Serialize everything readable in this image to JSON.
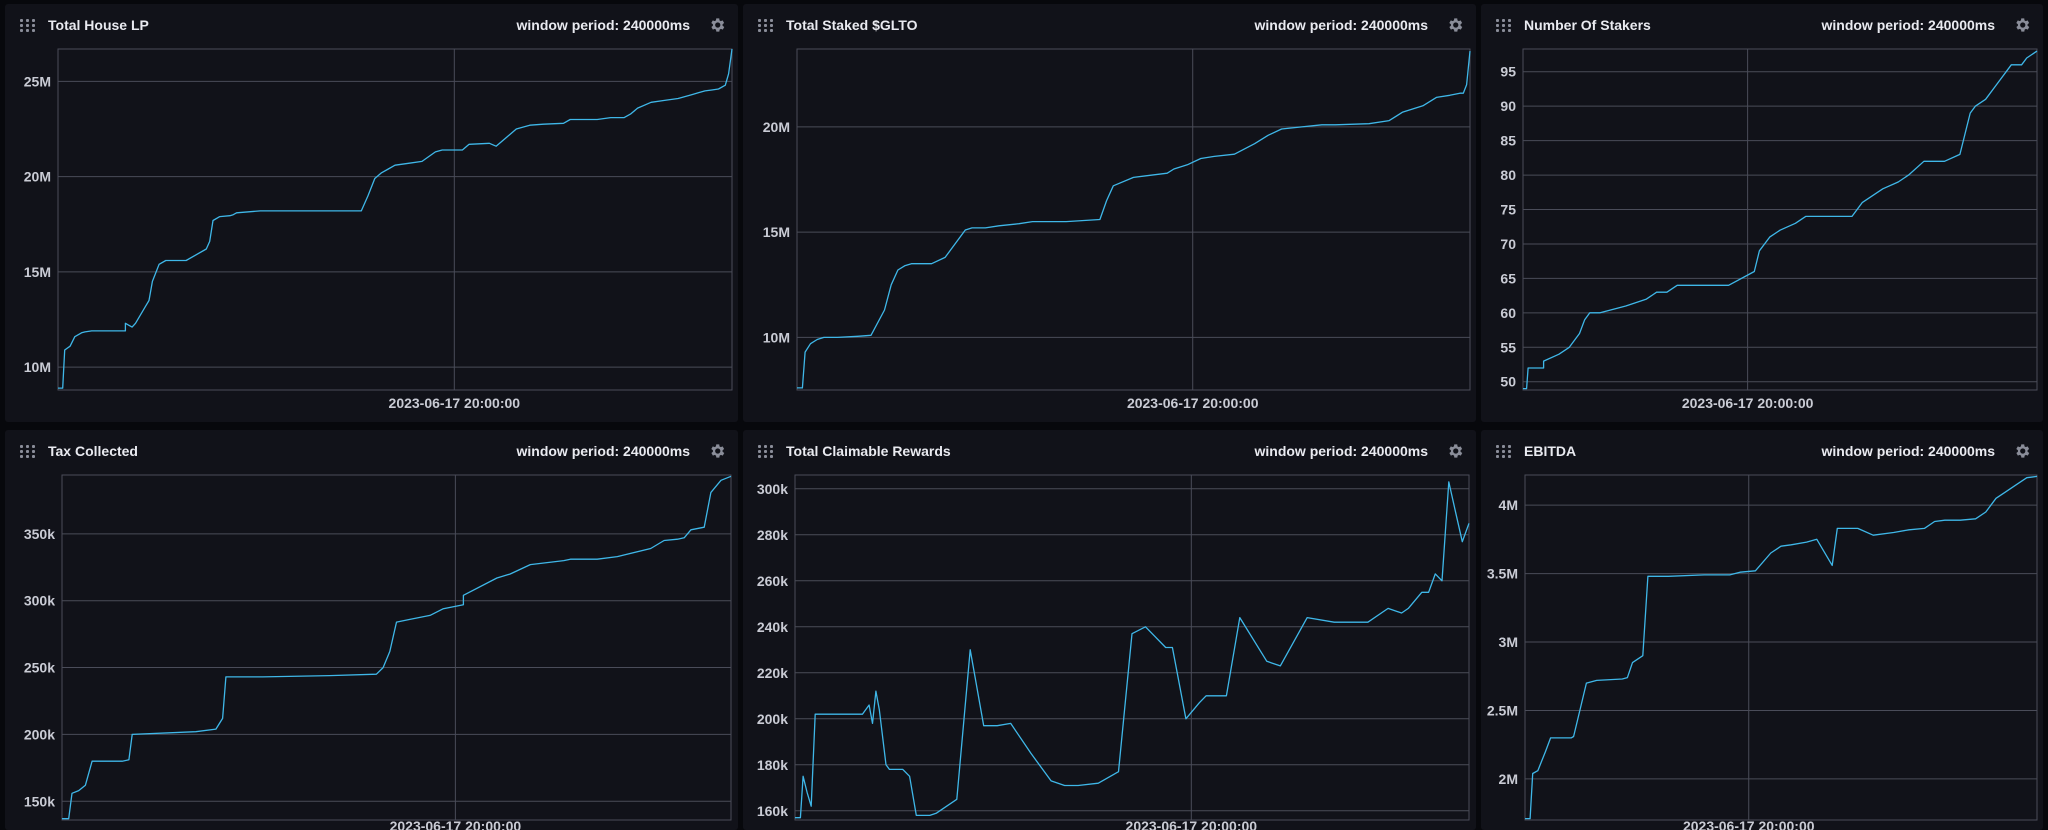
{
  "dashboard": {
    "gear_icon": "gear-icon",
    "drag_icon": "drag-handle-icon",
    "colors": {
      "background": "#07080c",
      "panel": "#111219",
      "grid": "#4a4c59",
      "line": "#3fb7e8",
      "text": "#e9eaf0"
    }
  },
  "panels": [
    {
      "title": "Total House LP",
      "window_period": "window period: 240000ms"
    },
    {
      "title": "Total Staked $GLTO",
      "window_period": "window period: 240000ms"
    },
    {
      "title": "Number Of Stakers",
      "window_period": "window period: 240000ms"
    },
    {
      "title": "Tax Collected",
      "window_period": "window period: 240000ms"
    },
    {
      "title": "Total Claimable Rewards",
      "window_period": "window period: 240000ms"
    },
    {
      "title": "EBITDA",
      "window_period": "window period: 240000ms"
    }
  ],
  "chart_data": [
    {
      "type": "line",
      "title": "Total House LP",
      "x_tick_labels": [
        "2023-06-17 20:00:00"
      ],
      "y_tick_values": [
        10000000,
        15000000,
        20000000,
        25000000
      ],
      "y_tick_labels": [
        "10M",
        "15M",
        "20M",
        "25M"
      ],
      "ylim": [
        8800000,
        26700000
      ],
      "grid": true,
      "series": [
        {
          "x": [
            0,
            0.007,
            0.01,
            0.018,
            0.025,
            0.035,
            0.04,
            0.05,
            0.07,
            0.1,
            0.1,
            0.11,
            0.115,
            0.13,
            0.135,
            0.14,
            0.15,
            0.16,
            0.17,
            0.18,
            0.19,
            0.22,
            0.225,
            0.23,
            0.24,
            0.255,
            0.26,
            0.265,
            0.3,
            0.45,
            0.46,
            0.47,
            0.48,
            0.49,
            0.5,
            0.52,
            0.54,
            0.56,
            0.57,
            0.6,
            0.61,
            0.64,
            0.65,
            0.67,
            0.68,
            0.7,
            0.72,
            0.75,
            0.76,
            0.8,
            0.82,
            0.84,
            0.85,
            0.86,
            0.88,
            0.9,
            0.92,
            0.94,
            0.95,
            0.96,
            0.97,
            0.98,
            0.99,
            0.995,
            1.0
          ],
          "y": [
            8900000,
            8900000,
            10900000,
            11100000,
            11600000,
            11800000,
            11850000,
            11900000,
            11900000,
            11900000,
            12300000,
            12100000,
            12300000,
            13200000,
            13500000,
            14500000,
            15400000,
            15600000,
            15600000,
            15600000,
            15600000,
            16200000,
            16600000,
            17700000,
            17900000,
            17950000,
            18000000,
            18100000,
            18200000,
            18200000,
            19000000,
            19900000,
            20200000,
            20400000,
            20600000,
            20700000,
            20800000,
            21300000,
            21400000,
            21400000,
            21700000,
            21750000,
            21600000,
            22200000,
            22500000,
            22700000,
            22750000,
            22800000,
            23000000,
            23000000,
            23100000,
            23100000,
            23300000,
            23600000,
            23900000,
            24000000,
            24100000,
            24300000,
            24400000,
            24500000,
            24550000,
            24600000,
            24800000,
            25400000,
            26700000
          ]
        }
      ]
    },
    {
      "type": "line",
      "title": "Total Staked $GLTO",
      "x_tick_labels": [
        "2023-06-17 20:00:00"
      ],
      "y_tick_values": [
        10000000,
        15000000,
        20000000
      ],
      "y_tick_labels": [
        "10M",
        "15M",
        "20M"
      ],
      "ylim": [
        7500000,
        23700000
      ],
      "grid": true,
      "series": [
        {
          "x": [
            0,
            0.008,
            0.012,
            0.02,
            0.03,
            0.04,
            0.06,
            0.09,
            0.11,
            0.13,
            0.14,
            0.15,
            0.16,
            0.17,
            0.18,
            0.2,
            0.22,
            0.25,
            0.26,
            0.28,
            0.3,
            0.33,
            0.35,
            0.4,
            0.45,
            0.46,
            0.47,
            0.5,
            0.55,
            0.56,
            0.58,
            0.6,
            0.62,
            0.65,
            0.68,
            0.7,
            0.72,
            0.75,
            0.78,
            0.8,
            0.85,
            0.88,
            0.9,
            0.93,
            0.95,
            0.97,
            0.985,
            0.99,
            0.995,
            1.0
          ],
          "y": [
            7600000,
            7600000,
            9300000,
            9700000,
            9900000,
            10000000,
            10000000,
            10050000,
            10100000,
            11300000,
            12500000,
            13200000,
            13400000,
            13500000,
            13500000,
            13500000,
            13800000,
            15100000,
            15200000,
            15200000,
            15300000,
            15400000,
            15500000,
            15500000,
            15600000,
            16500000,
            17200000,
            17600000,
            17800000,
            18000000,
            18200000,
            18500000,
            18600000,
            18700000,
            19200000,
            19600000,
            19900000,
            20000000,
            20100000,
            20100000,
            20150000,
            20300000,
            20700000,
            21000000,
            21400000,
            21500000,
            21600000,
            21600000,
            22000000,
            23600000
          ]
        }
      ]
    },
    {
      "type": "line",
      "title": "Number Of Stakers",
      "x_tick_labels": [
        "2023-06-17 20:00:00"
      ],
      "y_tick_values": [
        50,
        55,
        60,
        65,
        70,
        75,
        80,
        85,
        90,
        95
      ],
      "y_tick_labels": [
        "50",
        "55",
        "60",
        "65",
        "70",
        "75",
        "80",
        "85",
        "90",
        "95"
      ],
      "ylim": [
        48.8,
        98.3
      ],
      "grid": true,
      "series": [
        {
          "x": [
            0,
            0.007,
            0.01,
            0.04,
            0.04,
            0.07,
            0.09,
            0.1,
            0.11,
            0.12,
            0.13,
            0.15,
            0.2,
            0.24,
            0.26,
            0.28,
            0.3,
            0.35,
            0.4,
            0.45,
            0.46,
            0.48,
            0.5,
            0.53,
            0.55,
            0.58,
            0.62,
            0.64,
            0.66,
            0.7,
            0.73,
            0.75,
            0.78,
            0.8,
            0.82,
            0.85,
            0.87,
            0.88,
            0.9,
            0.92,
            0.95,
            0.97,
            0.98,
            1.0
          ],
          "y": [
            49,
            49,
            52,
            52,
            53,
            54,
            55,
            56,
            57,
            59,
            60,
            60,
            61,
            62,
            63,
            63,
            64,
            64,
            64,
            66,
            69,
            71,
            72,
            73,
            74,
            74,
            74,
            74,
            76,
            78,
            79,
            80,
            82,
            82,
            82,
            83,
            89,
            90,
            91,
            93,
            96,
            96,
            97,
            98
          ]
        }
      ]
    },
    {
      "type": "line",
      "title": "Tax Collected",
      "x_tick_labels": [
        "2023-06-17 20:00:00"
      ],
      "y_tick_values": [
        150000,
        200000,
        250000,
        300000,
        350000
      ],
      "y_tick_labels": [
        "150k",
        "200k",
        "250k",
        "300k",
        "350k"
      ],
      "ylim": [
        136000,
        394000
      ],
      "grid": true,
      "series": [
        {
          "x": [
            0,
            0.01,
            0.015,
            0.025,
            0.035,
            0.045,
            0.09,
            0.1,
            0.105,
            0.2,
            0.23,
            0.24,
            0.245,
            0.3,
            0.4,
            0.47,
            0.48,
            0.49,
            0.5,
            0.52,
            0.55,
            0.57,
            0.6,
            0.6,
            0.65,
            0.67,
            0.7,
            0.75,
            0.76,
            0.8,
            0.83,
            0.88,
            0.9,
            0.92,
            0.93,
            0.94,
            0.96,
            0.97,
            0.985,
            1.0
          ],
          "y": [
            137000,
            137000,
            156000,
            158000,
            162000,
            180000,
            180000,
            181000,
            200000,
            202000,
            204000,
            212000,
            243000,
            243000,
            244000,
            245000,
            250000,
            262000,
            284000,
            286000,
            289000,
            294000,
            297000,
            304000,
            317000,
            320000,
            327000,
            330000,
            331000,
            331000,
            333000,
            339000,
            345000,
            346000,
            347000,
            353000,
            355000,
            381000,
            390000,
            393000
          ]
        }
      ]
    },
    {
      "type": "line",
      "title": "Total Claimable Rewards",
      "x_tick_labels": [
        "2023-06-17 20:00:00"
      ],
      "y_tick_values": [
        160000,
        180000,
        200000,
        220000,
        240000,
        260000,
        280000,
        300000
      ],
      "y_tick_labels": [
        "160k",
        "180k",
        "200k",
        "220k",
        "240k",
        "260k",
        "280k",
        "300k"
      ],
      "ylim": [
        156000,
        306000
      ],
      "grid": true,
      "series": [
        {
          "x": [
            0,
            0.008,
            0.012,
            0.018,
            0.024,
            0.03,
            0.04,
            0.06,
            0.1,
            0.11,
            0.115,
            0.12,
            0.125,
            0.135,
            0.14,
            0.16,
            0.17,
            0.18,
            0.2,
            0.21,
            0.24,
            0.26,
            0.28,
            0.3,
            0.32,
            0.35,
            0.38,
            0.4,
            0.42,
            0.45,
            0.48,
            0.5,
            0.52,
            0.55,
            0.56,
            0.58,
            0.6,
            0.61,
            0.64,
            0.66,
            0.7,
            0.72,
            0.76,
            0.8,
            0.85,
            0.88,
            0.9,
            0.91,
            0.93,
            0.94,
            0.95,
            0.96,
            0.97,
            0.98,
            0.99,
            1.0
          ],
          "y": [
            157000,
            157000,
            175000,
            168000,
            162000,
            202000,
            202000,
            202000,
            202000,
            206000,
            198000,
            212000,
            204000,
            180000,
            178000,
            178000,
            175000,
            158000,
            158000,
            159000,
            165000,
            230000,
            197000,
            197000,
            198000,
            185000,
            173000,
            171000,
            171000,
            172000,
            177000,
            237000,
            240000,
            231000,
            231000,
            200000,
            207000,
            210000,
            210000,
            244000,
            225000,
            223000,
            244000,
            242000,
            242000,
            248000,
            246000,
            248000,
            255000,
            255000,
            263000,
            260000,
            303000,
            290000,
            277000,
            285000
          ]
        }
      ]
    },
    {
      "type": "line",
      "title": "EBITDA",
      "x_tick_labels": [
        "2023-06-17 20:00:00"
      ],
      "y_tick_values": [
        2000000,
        2500000,
        3000000,
        3500000,
        4000000
      ],
      "y_tick_labels": [
        "2M",
        "2.5M",
        "3M",
        "3.5M",
        "4M"
      ],
      "ylim": [
        1700000,
        4220000
      ],
      "grid": true,
      "series": [
        {
          "x": [
            0,
            0.01,
            0.015,
            0.025,
            0.04,
            0.05,
            0.09,
            0.095,
            0.12,
            0.13,
            0.14,
            0.19,
            0.2,
            0.21,
            0.23,
            0.24,
            0.28,
            0.35,
            0.4,
            0.42,
            0.45,
            0.48,
            0.5,
            0.52,
            0.55,
            0.57,
            0.6,
            0.61,
            0.65,
            0.68,
            0.72,
            0.75,
            0.78,
            0.8,
            0.82,
            0.85,
            0.88,
            0.9,
            0.92,
            0.94,
            0.96,
            0.98,
            1.0
          ],
          "y": [
            1710000,
            1710000,
            2040000,
            2060000,
            2200000,
            2300000,
            2300000,
            2310000,
            2700000,
            2710000,
            2720000,
            2730000,
            2740000,
            2850000,
            2900000,
            3480000,
            3480000,
            3490000,
            3490000,
            3510000,
            3520000,
            3650000,
            3700000,
            3710000,
            3730000,
            3750000,
            3560000,
            3830000,
            3830000,
            3780000,
            3800000,
            3820000,
            3830000,
            3880000,
            3890000,
            3890000,
            3900000,
            3950000,
            4050000,
            4100000,
            4150000,
            4200000,
            4210000
          ]
        }
      ]
    }
  ]
}
